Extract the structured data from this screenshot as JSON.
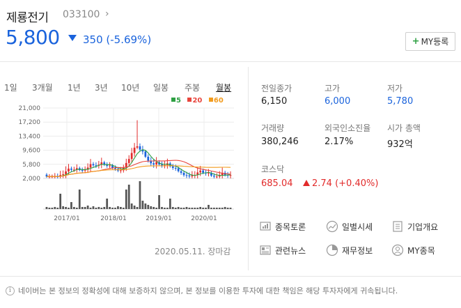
{
  "header": {
    "name": "제룡전기",
    "code": "033100",
    "chevron": "›",
    "price": "5,800",
    "change": "350 (-5.69%)",
    "my_button": "MY등록",
    "my_button_plus": "+"
  },
  "tabs": [
    "1일",
    "3개월",
    "1년",
    "3년",
    "10년",
    "일봉",
    "주봉",
    "월봉"
  ],
  "active_tab": "월봉",
  "legend": [
    {
      "label": "5",
      "color": "#2ea043"
    },
    {
      "label": "20",
      "color": "#e8453c"
    },
    {
      "label": "60",
      "color": "#f29b1d"
    }
  ],
  "chart_data": {
    "type": "candlestick",
    "y_ticks": [
      "21,000",
      "17,200",
      "13,400",
      "9,600",
      "5,800",
      "2,000"
    ],
    "x_ticks": [
      "2017/01",
      "2018/01",
      "2019/01",
      "2020/01"
    ],
    "ylim": [
      2000,
      21000
    ]
  },
  "timestamp": "2020.05.11. 장마감",
  "stats": {
    "prev_close_label": "전일종가",
    "prev_close": "6,150",
    "high_label": "고가",
    "high": "6,000",
    "low_label": "저가",
    "low": "5,780",
    "volume_label": "거래량",
    "volume": "380,246",
    "foreign_label": "외국인소진율",
    "foreign": "2.17%",
    "mcap_label": "시가 총액",
    "mcap": "932억"
  },
  "kosdaq": {
    "label": "코스닥",
    "value": "685.04",
    "change": "2.74 (+0.40%)"
  },
  "links": [
    {
      "label": "종목토론",
      "icon": "forum-icon"
    },
    {
      "label": "일별시세",
      "icon": "trend-icon"
    },
    {
      "label": "기업개요",
      "icon": "document-icon"
    },
    {
      "label": "관련뉴스",
      "icon": "news-icon"
    },
    {
      "label": "재무정보",
      "icon": "pie-chart-icon"
    },
    {
      "label": "MY종목",
      "icon": "person-icon"
    }
  ],
  "disclaimer": {
    "icon": "i",
    "text": "네이버는 본 정보의 정확성에 대해 보증하지 않으며, 본 정보를 이용한 투자에 대한 책임은 해당 투자자에게 귀속됩니다."
  }
}
